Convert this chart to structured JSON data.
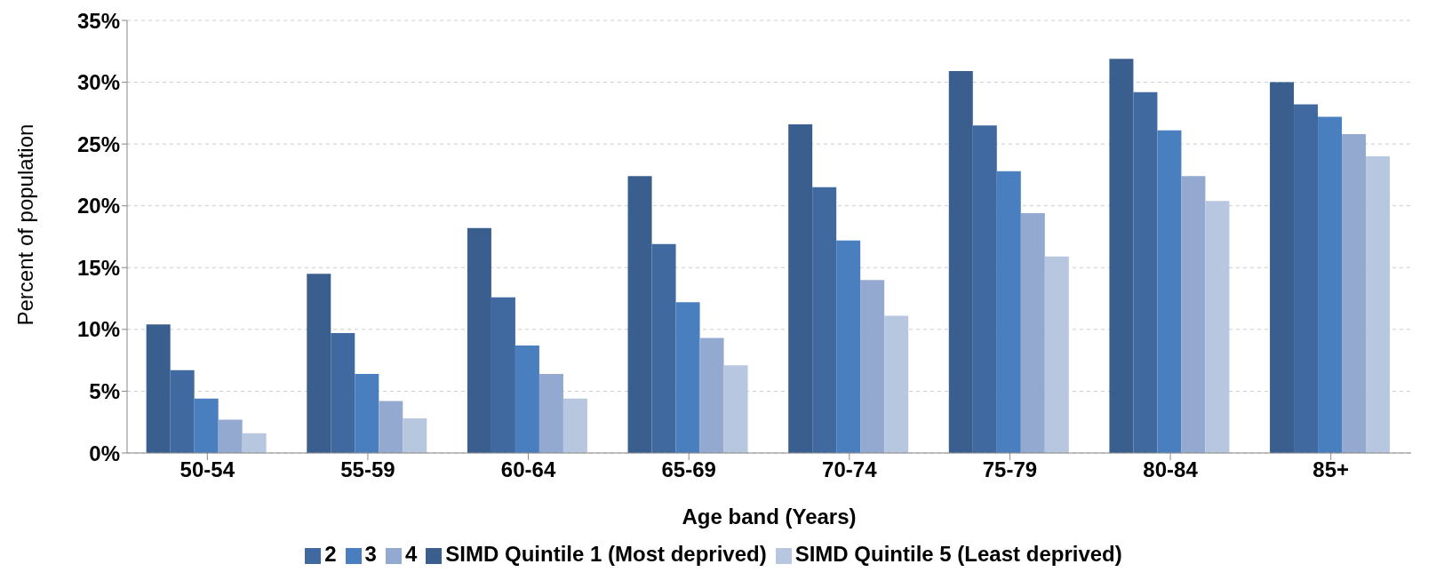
{
  "chart_data": {
    "type": "bar",
    "xlabel": "Age band (Years)",
    "ylabel": "Percent of population",
    "categories": [
      "50-54",
      "55-59",
      "60-64",
      "65-69",
      "70-74",
      "75-79",
      "80-84",
      "85+"
    ],
    "series": [
      {
        "name": "SIMD Quintile 1 (Most deprived)",
        "color": "#3a5f8f",
        "values": [
          10.4,
          14.5,
          18.2,
          22.4,
          26.6,
          30.9,
          31.9,
          30.0
        ]
      },
      {
        "name": "2",
        "color": "#40699f",
        "values": [
          6.7,
          9.7,
          12.6,
          16.9,
          21.5,
          26.5,
          29.2,
          28.2
        ]
      },
      {
        "name": "3",
        "color": "#4a7fbf",
        "values": [
          4.4,
          6.4,
          8.7,
          12.2,
          17.2,
          22.8,
          26.1,
          27.2
        ]
      },
      {
        "name": "4",
        "color": "#93a9d0",
        "values": [
          2.7,
          4.2,
          6.4,
          9.3,
          14.0,
          19.4,
          22.4,
          25.8
        ]
      },
      {
        "name": "SIMD Quintile 5 (Least deprived)",
        "color": "#b8c7e0",
        "values": [
          1.6,
          2.8,
          4.4,
          7.1,
          11.1,
          15.9,
          20.4,
          24.0
        ]
      }
    ],
    "ylim": [
      0,
      35
    ],
    "yticks": [
      {
        "value": 0,
        "label": "0%"
      },
      {
        "value": 5,
        "label": "5%"
      },
      {
        "value": 10,
        "label": "10%"
      },
      {
        "value": 15,
        "label": "15%"
      },
      {
        "value": 20,
        "label": "20%"
      },
      {
        "value": 25,
        "label": "25%"
      },
      {
        "value": 30,
        "label": "30%"
      },
      {
        "value": 35,
        "label": "35%"
      }
    ],
    "grid": "y",
    "legend": "bottom"
  }
}
